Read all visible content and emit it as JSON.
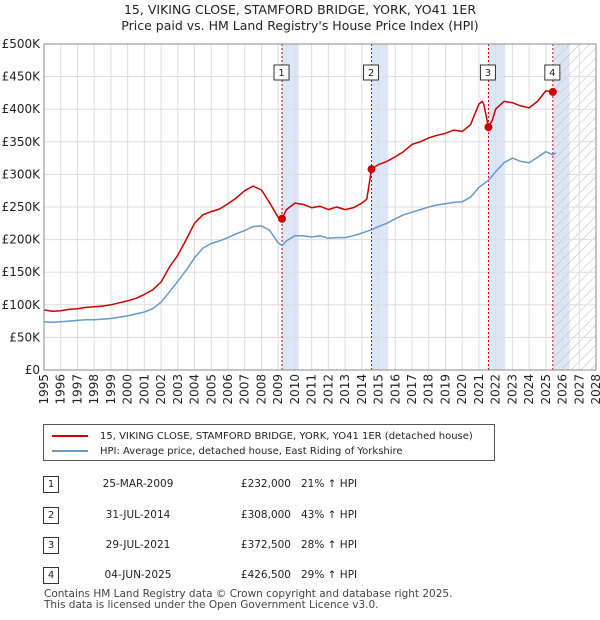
{
  "chart_data": {
    "type": "line",
    "title": "15, VIKING CLOSE, STAMFORD BRIDGE, YORK, YO41 1ER",
    "subtitle": "Price paid vs. HM Land Registry's House Price Index (HPI)",
    "xlabel": "",
    "ylabel": "",
    "xlim": [
      1995,
      2028
    ],
    "ylim": [
      0,
      500000
    ],
    "grid": true,
    "x_ticks": [
      "1995",
      "1996",
      "1997",
      "1998",
      "1999",
      "2000",
      "2001",
      "2002",
      "2003",
      "2004",
      "2005",
      "2006",
      "2007",
      "2008",
      "2009",
      "2010",
      "2011",
      "2012",
      "2013",
      "2014",
      "2015",
      "2016",
      "2017",
      "2018",
      "2019",
      "2020",
      "2021",
      "2022",
      "2023",
      "2024",
      "2025",
      "2026",
      "2027",
      "2028"
    ],
    "y_ticks": [
      {
        "value": 0,
        "label": "£0"
      },
      {
        "value": 50000,
        "label": "£50K"
      },
      {
        "value": 100000,
        "label": "£100K"
      },
      {
        "value": 150000,
        "label": "£150K"
      },
      {
        "value": 200000,
        "label": "£200K"
      },
      {
        "value": 250000,
        "label": "£250K"
      },
      {
        "value": 300000,
        "label": "£300K"
      },
      {
        "value": 350000,
        "label": "£350K"
      },
      {
        "value": 400000,
        "label": "£400K"
      },
      {
        "value": 450000,
        "label": "£450K"
      },
      {
        "value": 500000,
        "label": "£500K"
      }
    ],
    "future_hatch_from": 2025.5,
    "series": [
      {
        "name": "15, VIKING CLOSE, STAMFORD BRIDGE, YORK, YO41 1ER (detached house)",
        "color": "#cc0000",
        "x": [
          1995,
          1995.5,
          1996,
          1996.5,
          1997,
          1997.5,
          1998,
          1998.5,
          1999,
          1999.5,
          2000,
          2000.5,
          2001,
          2001.5,
          2002,
          2002.5,
          2003,
          2003.5,
          2004,
          2004.5,
          2005,
          2005.5,
          2006,
          2006.5,
          2007,
          2007.5,
          2008,
          2008.5,
          2009,
          2009.23,
          2009.5,
          2010,
          2010.5,
          2011,
          2011.5,
          2012,
          2012.5,
          2013,
          2013.5,
          2014,
          2014.3,
          2014.58,
          2014.8,
          2015,
          2015.5,
          2016,
          2016.5,
          2017,
          2017.5,
          2018,
          2018.5,
          2019,
          2019.5,
          2020,
          2020.5,
          2021,
          2021.2,
          2021.3,
          2021.57,
          2021.8,
          2022,
          2022.5,
          2023,
          2023.5,
          2024,
          2024.5,
          2025,
          2025.42,
          2025.6
        ],
        "y": [
          92000,
          90000,
          91000,
          93000,
          94000,
          96000,
          97000,
          98000,
          100000,
          103000,
          106000,
          110000,
          116000,
          123000,
          135000,
          158000,
          176000,
          200000,
          225000,
          238000,
          243000,
          247000,
          255000,
          264000,
          275000,
          282000,
          276000,
          256000,
          234000,
          232000,
          246000,
          256000,
          254000,
          249000,
          251000,
          246000,
          250000,
          246000,
          249000,
          256000,
          262000,
          308000,
          312000,
          315000,
          320000,
          327000,
          335000,
          346000,
          350000,
          356000,
          360000,
          363000,
          368000,
          366000,
          376000,
          408000,
          412000,
          407000,
          372500,
          383000,
          400000,
          412000,
          410000,
          405000,
          402000,
          412000,
          428000,
          426500,
          426000
        ]
      },
      {
        "name": "HPI: Average price, detached house, East Riding of Yorkshire",
        "color": "#6699cc",
        "x": [
          1995,
          1995.5,
          1996,
          1996.5,
          1997,
          1997.5,
          1998,
          1998.5,
          1999,
          1999.5,
          2000,
          2000.5,
          2001,
          2001.5,
          2002,
          2002.5,
          2003,
          2003.5,
          2004,
          2004.5,
          2005,
          2005.5,
          2006,
          2006.5,
          2007,
          2007.5,
          2008,
          2008.5,
          2009,
          2009.23,
          2009.5,
          2010,
          2010.5,
          2011,
          2011.5,
          2012,
          2012.5,
          2013,
          2013.5,
          2014,
          2014.58,
          2015,
          2015.5,
          2016,
          2016.5,
          2017,
          2017.5,
          2018,
          2018.5,
          2019,
          2019.5,
          2020,
          2020.5,
          2021,
          2021.57,
          2022,
          2022.5,
          2023,
          2023.5,
          2024,
          2024.5,
          2025,
          2025.42,
          2025.6
        ],
        "y": [
          74000,
          73000,
          74000,
          75000,
          76000,
          77000,
          77000,
          78000,
          79000,
          81000,
          83000,
          86000,
          89000,
          94000,
          104000,
          120000,
          136000,
          153000,
          172000,
          187000,
          194000,
          198000,
          203000,
          209000,
          214000,
          220000,
          221000,
          214000,
          195000,
          191000,
          198000,
          206000,
          206000,
          204000,
          206000,
          202000,
          203000,
          203000,
          206000,
          210000,
          215000,
          220000,
          225000,
          232000,
          238000,
          242000,
          246000,
          250000,
          253000,
          255000,
          257000,
          258000,
          265000,
          280000,
          291000,
          304000,
          318000,
          325000,
          320000,
          318000,
          326000,
          335000,
          330000,
          333000
        ]
      }
    ],
    "sales": [
      {
        "num": "1",
        "year": 2009.23,
        "price": 232000
      },
      {
        "num": "2",
        "year": 2014.58,
        "price": 308000
      },
      {
        "num": "3",
        "year": 2021.57,
        "price": 372500
      },
      {
        "num": "4",
        "year": 2025.42,
        "price": 426500
      }
    ]
  },
  "legend": {
    "property_label": "15, VIKING CLOSE, STAMFORD BRIDGE, YORK, YO41 1ER (detached house)",
    "hpi_label": "HPI: Average price, detached house, East Riding of Yorkshire"
  },
  "table": [
    {
      "num": "1",
      "date": "25-MAR-2009",
      "price": "£232,000",
      "hpi": "21% ↑ HPI"
    },
    {
      "num": "2",
      "date": "31-JUL-2014",
      "price": "£308,000",
      "hpi": "43% ↑ HPI"
    },
    {
      "num": "3",
      "date": "29-JUL-2021",
      "price": "£372,500",
      "hpi": "28% ↑ HPI"
    },
    {
      "num": "4",
      "date": "04-JUN-2025",
      "price": "£426,500",
      "hpi": "29% ↑ HPI"
    }
  ],
  "footer": {
    "line1": "Contains HM Land Registry data © Crown copyright and database right 2025.",
    "line2": "This data is licensed under the Open Government Licence v3.0."
  },
  "colors": {
    "property": "#cc0000",
    "hpi": "#6699cc",
    "sale_band": "#dde6f7",
    "sale_line": "#cc0000",
    "grid": "#dddddd",
    "hatch": "#bbbbbb"
  }
}
